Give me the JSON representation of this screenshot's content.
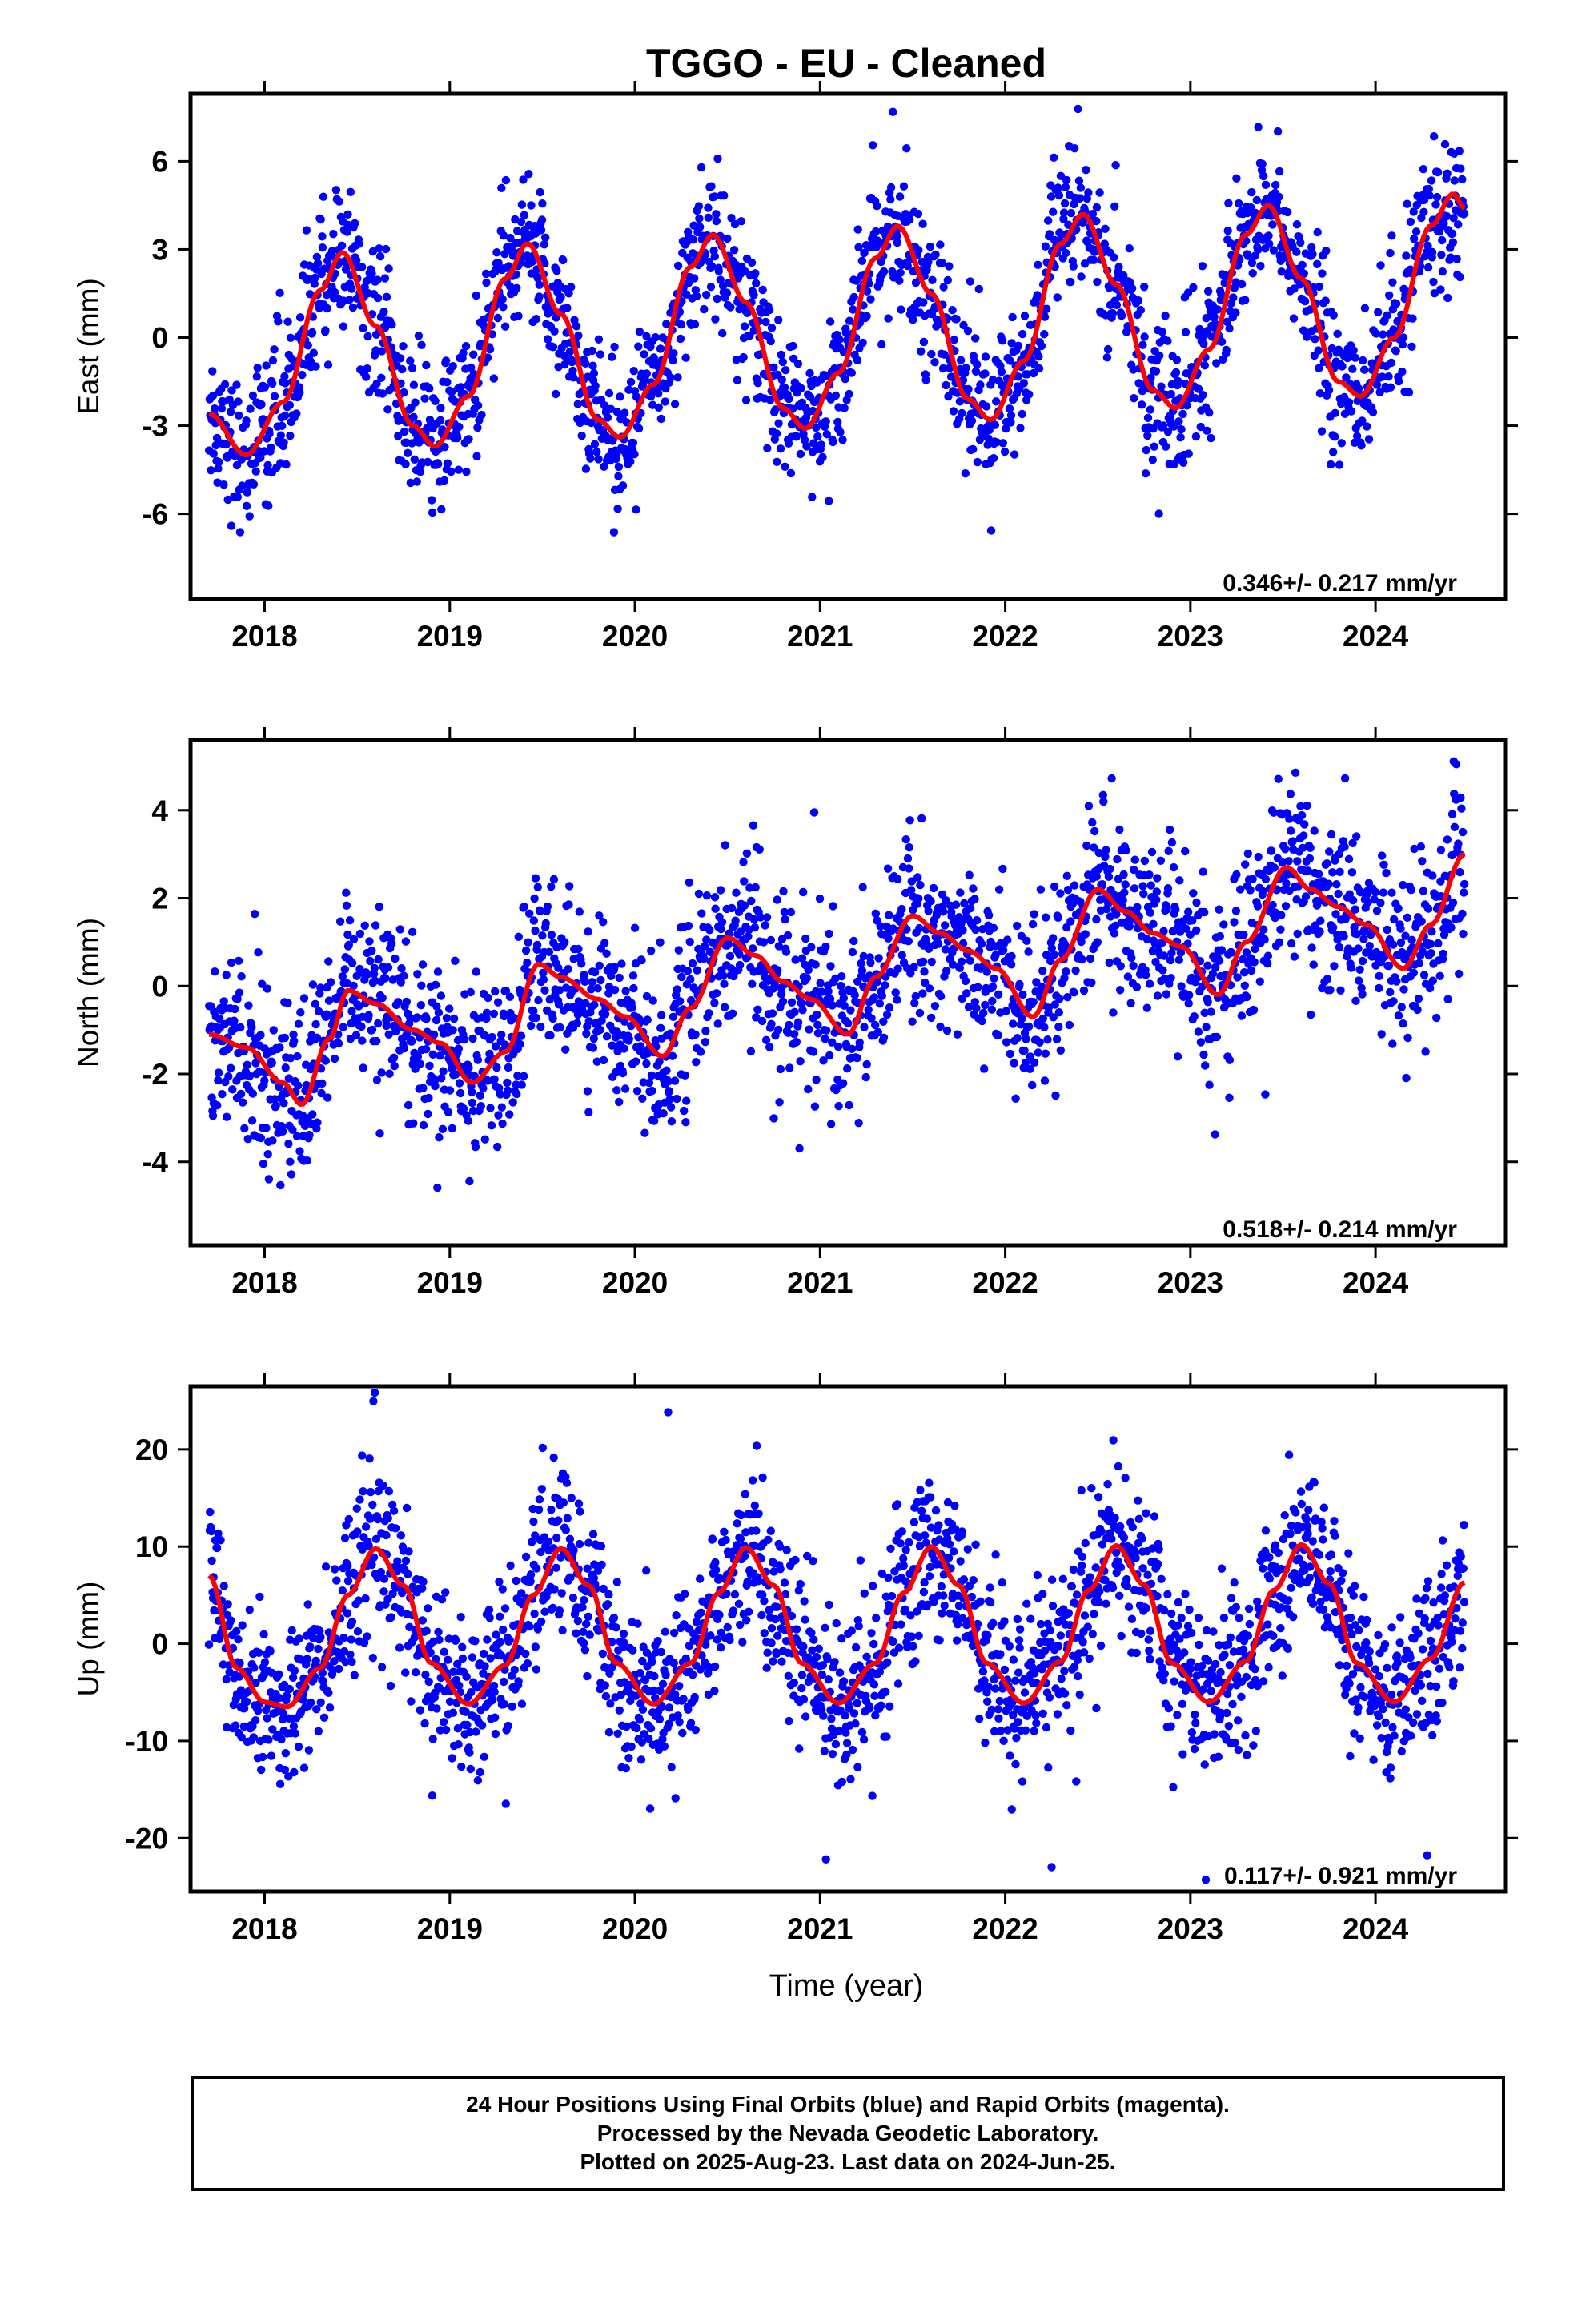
{
  "title": "TGGO  - EU - Cleaned",
  "xlabel": "Time (year)",
  "footer": {
    "line1": "24 Hour Positions Using Final Orbits (blue) and Rapid Orbits (magenta).",
    "line2": "Processed by the Nevada Geodetic Laboratory.",
    "line3": "Plotted on 2025-Aug-23. Last data on 2024-Jun-25."
  },
  "colors": {
    "points": "#0000ff",
    "model": "#ff0000",
    "frame": "#000000"
  },
  "chart_data": [
    {
      "type": "scatter",
      "ylabel": "East (mm)",
      "rate_text": "0.346+/- 0.217 mm/yr",
      "xlim": [
        2017.6,
        2024.7
      ],
      "ylim": [
        -8.9,
        8.3
      ],
      "xticks": [
        2018,
        2019,
        2020,
        2021,
        2022,
        2023,
        2024
      ],
      "yticks": [
        -6,
        -3,
        0,
        3,
        6
      ],
      "grid": false,
      "series": [
        {
          "role": "observations",
          "points": {
            "mean_curve_ref": "model",
            "scatter_sd": 1.2,
            "count": 2200,
            "x_range": [
              2017.7,
              2024.48
            ]
          }
        },
        {
          "role": "model",
          "x": [
            2017.7,
            2017.9,
            2018.1,
            2018.3,
            2018.42,
            2018.6,
            2018.8,
            2018.92,
            2019.1,
            2019.3,
            2019.42,
            2019.6,
            2019.8,
            2019.92,
            2020.1,
            2020.3,
            2020.42,
            2020.6,
            2020.8,
            2020.92,
            2021.1,
            2021.3,
            2021.42,
            2021.6,
            2021.8,
            2021.92,
            2022.1,
            2022.3,
            2022.42,
            2022.6,
            2022.8,
            2022.92,
            2023.1,
            2023.3,
            2023.42,
            2023.6,
            2023.8,
            2023.92,
            2024.1,
            2024.3,
            2024.42,
            2024.48
          ],
          "y": [
            -2.6,
            -4.0,
            -2.2,
            1.6,
            2.9,
            0.4,
            -3.0,
            -3.7,
            -2.0,
            2.0,
            3.2,
            0.8,
            -2.8,
            -3.4,
            -1.6,
            2.4,
            3.5,
            1.2,
            -2.4,
            -3.1,
            -1.2,
            2.7,
            3.8,
            1.5,
            -2.1,
            -2.8,
            -0.8,
            3.2,
            4.2,
            1.8,
            -1.8,
            -2.4,
            -0.4,
            3.5,
            4.5,
            2.0,
            -1.5,
            -2.0,
            0.0,
            3.8,
            4.9,
            4.4
          ]
        }
      ]
    },
    {
      "type": "scatter",
      "ylabel": "North (mm)",
      "rate_text": "0.518+/- 0.214 mm/yr",
      "xlim": [
        2017.6,
        2024.7
      ],
      "ylim": [
        -5.9,
        5.6
      ],
      "xticks": [
        2018,
        2019,
        2020,
        2021,
        2022,
        2023,
        2024
      ],
      "yticks": [
        -4,
        -2,
        0,
        2,
        4
      ],
      "grid": false,
      "series": [
        {
          "role": "observations",
          "points": {
            "mean_curve_ref": "model",
            "scatter_sd": 0.95,
            "count": 2200,
            "x_range": [
              2017.7,
              2024.48
            ]
          }
        },
        {
          "role": "model",
          "x": [
            2017.7,
            2017.9,
            2018.1,
            2018.2,
            2018.35,
            2018.45,
            2018.6,
            2018.8,
            2018.95,
            2019.12,
            2019.3,
            2019.48,
            2019.6,
            2019.8,
            2019.95,
            2020.15,
            2020.3,
            2020.5,
            2020.65,
            2020.8,
            2020.95,
            2021.15,
            2021.3,
            2021.5,
            2021.65,
            2021.8,
            2021.95,
            2022.15,
            2022.3,
            2022.5,
            2022.65,
            2022.8,
            2022.95,
            2023.15,
            2023.3,
            2023.52,
            2023.65,
            2023.8,
            2023.95,
            2024.15,
            2024.3,
            2024.48
          ],
          "y": [
            -1.1,
            -1.4,
            -2.2,
            -2.7,
            -1.2,
            -0.1,
            -0.4,
            -1.0,
            -1.3,
            -2.2,
            -1.5,
            0.5,
            0.2,
            -0.3,
            -0.7,
            -1.6,
            -0.5,
            1.1,
            0.7,
            0.1,
            -0.3,
            -1.1,
            0.2,
            1.6,
            1.2,
            0.8,
            0.4,
            -0.7,
            0.6,
            2.2,
            1.7,
            1.2,
            0.9,
            -0.2,
            1.0,
            2.7,
            2.2,
            1.8,
            1.4,
            0.4,
            1.4,
            3.0
          ]
        }
      ]
    },
    {
      "type": "scatter",
      "ylabel": "Up (mm)",
      "rate_text": "0.117+/- 0.921 mm/yr",
      "xlim": [
        2017.6,
        2024.7
      ],
      "ylim": [
        -25.5,
        26.5
      ],
      "xticks": [
        2018,
        2019,
        2020,
        2021,
        2022,
        2023,
        2024
      ],
      "yticks": [
        -20,
        -10,
        0,
        10,
        20
      ],
      "grid": false,
      "series": [
        {
          "role": "observations",
          "points": {
            "mean_curve_ref": "model",
            "scatter_sd": 4.2,
            "count": 2200,
            "x_range": [
              2017.7,
              2024.48
            ]
          }
        },
        {
          "role": "model",
          "x": [
            2017.7,
            2017.85,
            2018.0,
            2018.12,
            2018.3,
            2018.45,
            2018.6,
            2018.75,
            2018.9,
            2019.1,
            2019.3,
            2019.45,
            2019.6,
            2019.75,
            2019.9,
            2020.1,
            2020.3,
            2020.45,
            2020.6,
            2020.75,
            2020.9,
            2021.1,
            2021.3,
            2021.45,
            2021.6,
            2021.75,
            2021.9,
            2022.1,
            2022.3,
            2022.45,
            2022.6,
            2022.75,
            2022.9,
            2023.1,
            2023.3,
            2023.45,
            2023.6,
            2023.75,
            2023.9,
            2024.1,
            2024.3,
            2024.48
          ],
          "y": [
            7.0,
            -2.5,
            -6.0,
            -6.5,
            -2.5,
            5.0,
            9.8,
            6.0,
            -2.0,
            -6.2,
            -2.2,
            5.0,
            9.8,
            6.0,
            -2.0,
            -6.2,
            -2.0,
            5.2,
            9.9,
            6.0,
            -2.0,
            -6.1,
            -2.0,
            5.2,
            10.0,
            6.0,
            -2.0,
            -6.1,
            -1.8,
            5.5,
            10.1,
            6.1,
            -2.0,
            -6.0,
            -1.8,
            5.5,
            10.2,
            6.2,
            -2.0,
            -6.0,
            -1.5,
            6.3
          ]
        }
      ]
    }
  ]
}
